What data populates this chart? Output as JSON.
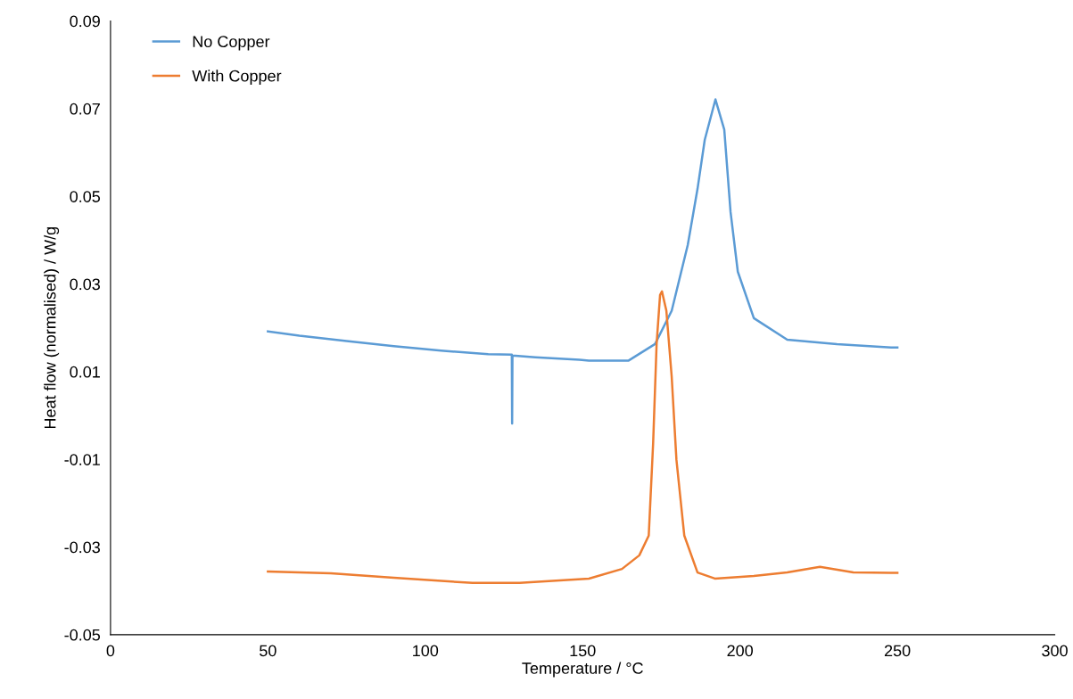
{
  "chart_data": {
    "type": "line",
    "xlabel": "Temperature / °C",
    "ylabel": "Heat flow (normalised) / W/g",
    "xlim": [
      0,
      300
    ],
    "xticks": [
      0,
      50,
      100,
      150,
      200,
      250,
      300
    ],
    "ylim": [
      -0.05,
      0.09
    ],
    "yticks": [
      -0.05,
      -0.03,
      -0.01,
      0.01,
      0.03,
      0.05,
      0.07,
      0.09
    ],
    "grid": false,
    "legend": "top left",
    "marker": "none",
    "line_style": "solid",
    "series": [
      {
        "name": "No Copper",
        "color": "#5b9bd5",
        "x": [
          50,
          60,
          75,
          90,
          105,
          120,
          127.5,
          127.6,
          127.7,
          135,
          149,
          152,
          164.5,
          173,
          178.3,
          183.4,
          186.5,
          188.8,
          192.2,
          195,
          197,
          199.3,
          204.4,
          215,
          230.8,
          248,
          250
        ],
        "values": [
          0.0192,
          0.0182,
          0.017,
          0.0158,
          0.0148,
          0.014,
          0.0139,
          -0.0018,
          0.0137,
          0.0133,
          0.0127,
          0.0125,
          0.0125,
          0.0163,
          0.0239,
          0.0389,
          0.0517,
          0.0629,
          0.0721,
          0.0652,
          0.0464,
          0.0328,
          0.0222,
          0.0173,
          0.0163,
          0.0155,
          0.0155
        ]
      },
      {
        "name": "With Copper",
        "color": "#ed7d31",
        "x": [
          50,
          70,
          90,
          115,
          130,
          152,
          162.5,
          168,
          171,
          172.4,
          173.5,
          174.6,
          175.2,
          176.6,
          178.3,
          179.8,
          182.3,
          186.5,
          192,
          204.4,
          215,
          225.4,
          236,
          248,
          250
        ],
        "values": [
          -0.0356,
          -0.036,
          -0.037,
          -0.0382,
          -0.0382,
          -0.0372,
          -0.035,
          -0.0319,
          -0.0274,
          -0.0063,
          0.0163,
          0.0275,
          0.0283,
          0.0239,
          0.0088,
          -0.0101,
          -0.0274,
          -0.0358,
          -0.0372,
          -0.0366,
          -0.0358,
          -0.0345,
          -0.0358,
          -0.0359,
          -0.0359
        ]
      }
    ]
  }
}
